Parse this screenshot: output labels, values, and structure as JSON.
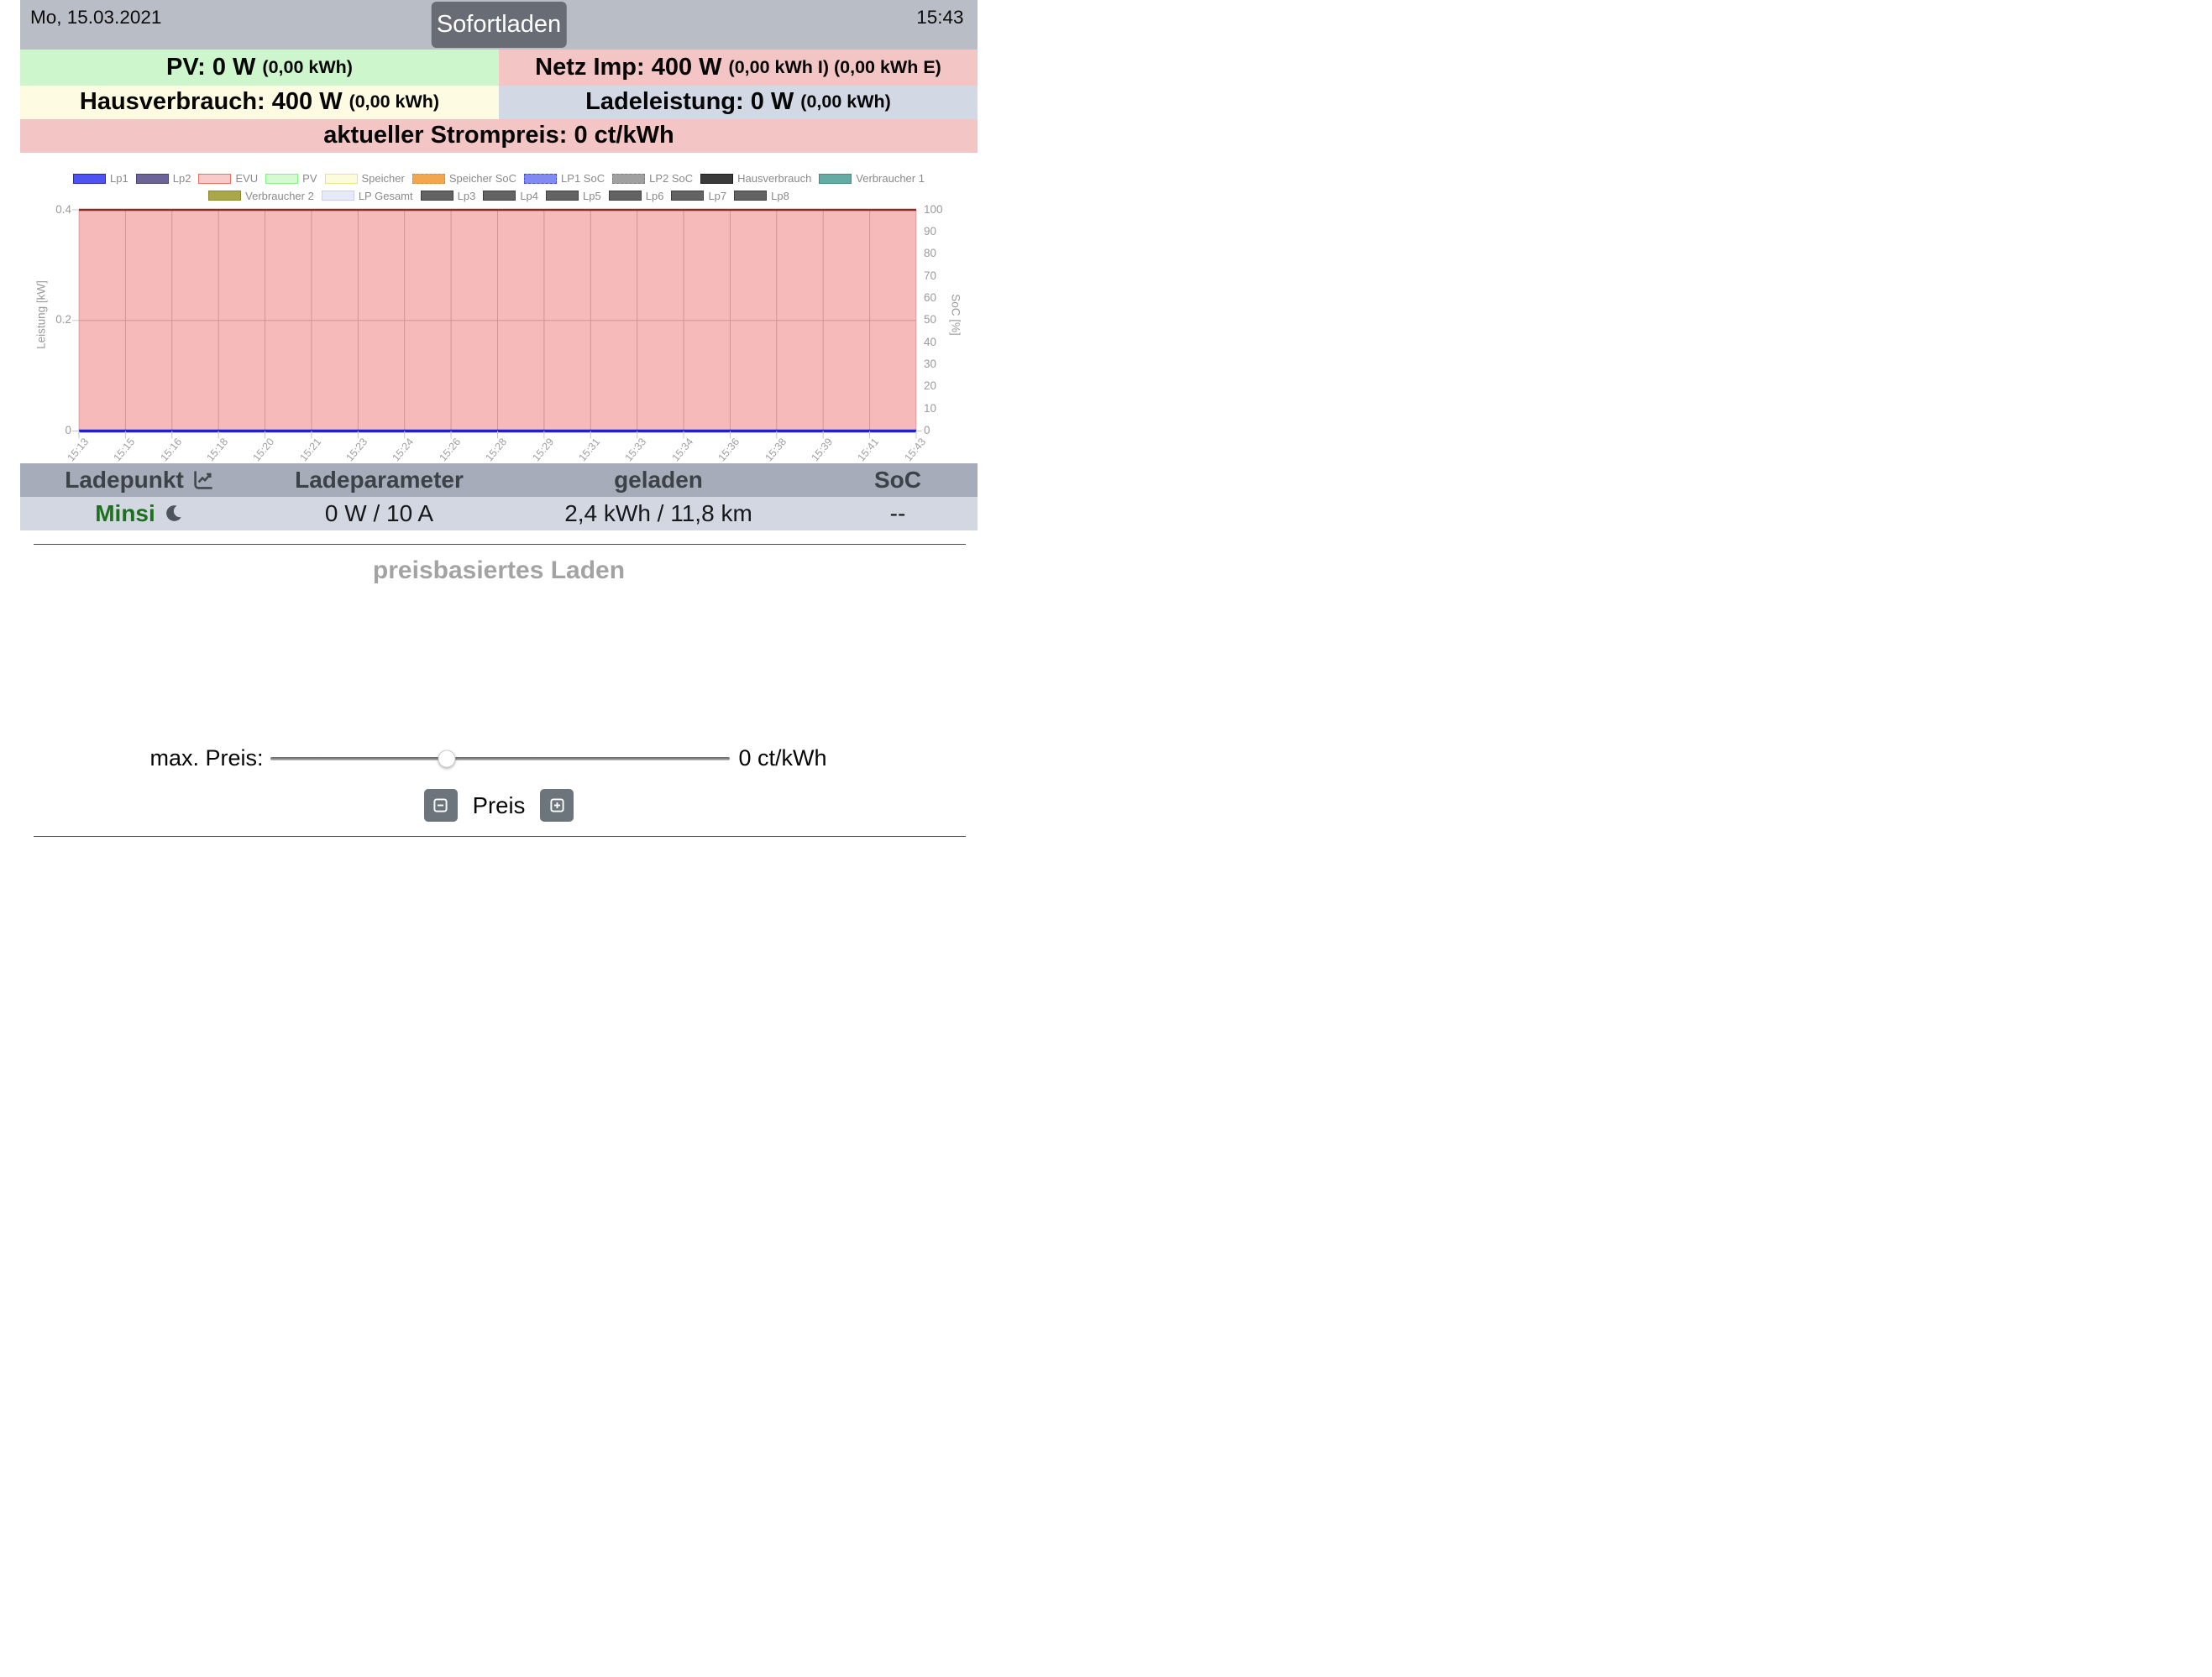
{
  "header": {
    "date": "Mo, 15.03.2021",
    "time": "15:43",
    "mode_button": "Sofortladen"
  },
  "info": {
    "pv": {
      "main": "PV: 0 W",
      "detail": "(0,00 kWh)"
    },
    "grid": {
      "main": "Netz Imp: 400 W",
      "detail": "(0,00 kWh I) (0,00 kWh E)"
    },
    "house": {
      "main": "Hausverbrauch: 400 W",
      "detail": "(0,00 kWh)"
    },
    "charge": {
      "main": "Ladeleistung: 0 W",
      "detail": "(0,00 kWh)"
    },
    "price": "aktueller Strompreis: 0 ct/kWh"
  },
  "chart_data": {
    "type": "area",
    "title": "",
    "x": [
      "15:13",
      "15:15",
      "15:16",
      "15:18",
      "15:20",
      "15:21",
      "15:23",
      "15:24",
      "15:26",
      "15:28",
      "15:29",
      "15:31",
      "15:33",
      "15:34",
      "15:36",
      "15:38",
      "15:39",
      "15:41",
      "15:43"
    ],
    "series": [
      {
        "name": "EVU",
        "values": [
          0.4,
          0.4,
          0.4,
          0.4,
          0.4,
          0.4,
          0.4,
          0.4,
          0.4,
          0.4,
          0.4,
          0.4,
          0.4,
          0.4,
          0.4,
          0.4,
          0.4,
          0.4,
          0.4
        ],
        "fill": "rgba(225,25,25,0.3)",
        "border": "#8c2b26",
        "border_width": 2.5
      },
      {
        "name": "Lp1",
        "values": [
          0,
          0,
          0,
          0,
          0,
          0,
          0,
          0,
          0,
          0,
          0,
          0,
          0,
          0,
          0,
          0,
          0,
          0,
          0
        ],
        "fill": "none",
        "border": "#2121cc",
        "border_width": 3.5
      }
    ],
    "ylabel_left": "Leistung [kW]",
    "ylim_left": [
      0,
      0.4
    ],
    "yticks_left": [
      "0.4",
      "0.2",
      "0"
    ],
    "ylabel_right": "SoC [%]",
    "ylim_right": [
      0,
      100
    ],
    "yticks_right": [
      "100",
      "90",
      "80",
      "70",
      "60",
      "50",
      "40",
      "30",
      "20",
      "10",
      "0"
    ],
    "grid": true,
    "legend_position": "top",
    "legend_rows": [
      [
        {
          "label": "Lp1",
          "fill": "#4d52f0",
          "border": "#2026cf",
          "dashed": false
        },
        {
          "label": "Lp2",
          "fill": "#6c6499",
          "border": "#4a4378",
          "dashed": false
        },
        {
          "label": "EVU",
          "fill": "#f8caca",
          "border": "#ef7062",
          "dashed": false
        },
        {
          "label": "PV",
          "fill": "#d4fad2",
          "border": "#82f282",
          "dashed": false
        },
        {
          "label": "Speicher",
          "fill": "#fcfbdc",
          "border": "#e7e388",
          "dashed": false
        },
        {
          "label": "Speicher SoC",
          "fill": "#f2a64e",
          "border": "#e8862c",
          "dashed": true
        },
        {
          "label": "LP1 SoC",
          "fill": "#8189f2",
          "border": "#4049e8",
          "dashed": true
        },
        {
          "label": "LP2 SoC",
          "fill": "#a0a0a0",
          "border": "#7d7d7d",
          "dashed": true
        },
        {
          "label": "Hausverbrauch",
          "fill": "#3a3a3a",
          "border": "#1f1f1f",
          "dashed": false
        },
        {
          "label": "Verbraucher 1",
          "fill": "#66aaa4",
          "border": "#3f8f88",
          "dashed": false
        }
      ],
      [
        {
          "label": "Verbraucher 2",
          "fill": "#a8a848",
          "border": "#8a8a2a",
          "dashed": false
        },
        {
          "label": "LP Gesamt",
          "fill": "#e6e9fb",
          "border": "#c9cef5",
          "dashed": false
        },
        {
          "label": "Lp3",
          "fill": "#636363",
          "border": "#3f3f3f",
          "dashed": false
        },
        {
          "label": "Lp4",
          "fill": "#636363",
          "border": "#3f3f3f",
          "dashed": false
        },
        {
          "label": "Lp5",
          "fill": "#636363",
          "border": "#3f3f3f",
          "dashed": false
        },
        {
          "label": "Lp6",
          "fill": "#636363",
          "border": "#3f3f3f",
          "dashed": false
        },
        {
          "label": "Lp7",
          "fill": "#636363",
          "border": "#3f3f3f",
          "dashed": false
        },
        {
          "label": "Lp8",
          "fill": "#636363",
          "border": "#3f3f3f",
          "dashed": false
        }
      ]
    ]
  },
  "table": {
    "headers": [
      "Ladepunkt",
      "Ladeparameter",
      "geladen",
      "SoC"
    ],
    "rows": [
      {
        "name": "Minsi",
        "params": "0 W / 10 A",
        "charged": "2,4 kWh / 11,8 km",
        "soc": "--"
      }
    ]
  },
  "price_section": {
    "heading": "preisbasiertes Laden",
    "slider_label": "max. Preis:",
    "slider_value": "0 ct/kWh",
    "slider_pos": 0.385,
    "stepper_label": "Preis"
  },
  "colors": {
    "topbar": "#b9bdc5",
    "button": "#686d75",
    "pv_row": "#cdf6cd",
    "grid_row": "#f3c5c5",
    "house_row": "#fdfce2",
    "charge_row": "#d3d8e5",
    "table_header": "#a7acba",
    "table_row": "#d2d7e2",
    "cp_name": "#1d701d",
    "evu_line": "#8c2b26",
    "lp1_line": "#2121cc"
  }
}
